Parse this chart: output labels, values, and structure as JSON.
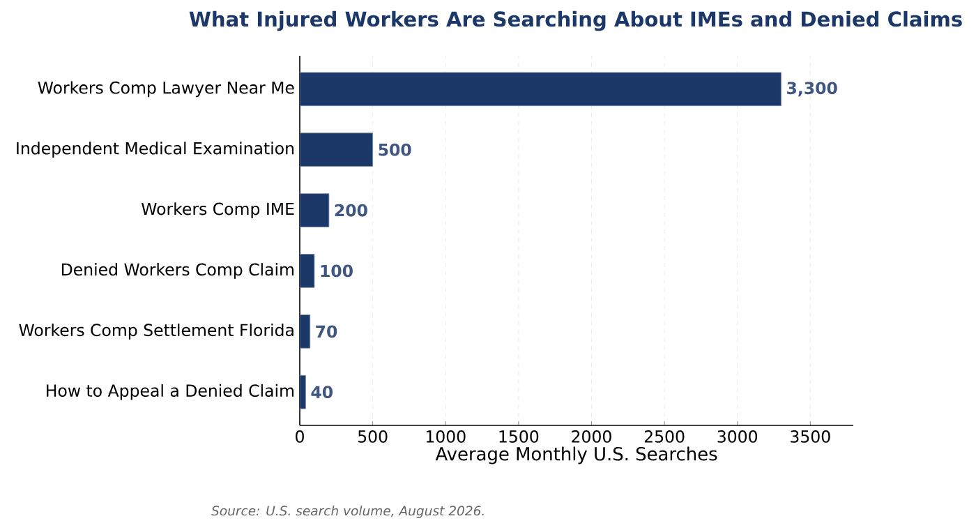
{
  "chart_data": {
    "type": "bar",
    "orientation": "horizontal",
    "title": "What Injured Workers Are Searching About IMEs and Denied Claims",
    "xlabel": "Average Monthly U.S. Searches",
    "categories": [
      "Workers Comp Lawyer Near Me",
      "Independent Medical Examination",
      "Workers Comp IME",
      "Denied Workers Comp Claim",
      "Workers Comp Settlement Florida",
      "How to Appeal a Denied Claim"
    ],
    "values": [
      3300,
      500,
      200,
      100,
      70,
      40
    ],
    "value_labels": [
      "3,300",
      "500",
      "200",
      "100",
      "70",
      "40"
    ],
    "color": "#1c3869",
    "xlim": [
      0,
      3795
    ],
    "xticks": [
      0,
      500,
      1000,
      1500,
      2000,
      2500,
      3000,
      3500
    ],
    "grid": "x",
    "annotations": [
      "Source: U.S. search volume, August 2026."
    ]
  }
}
